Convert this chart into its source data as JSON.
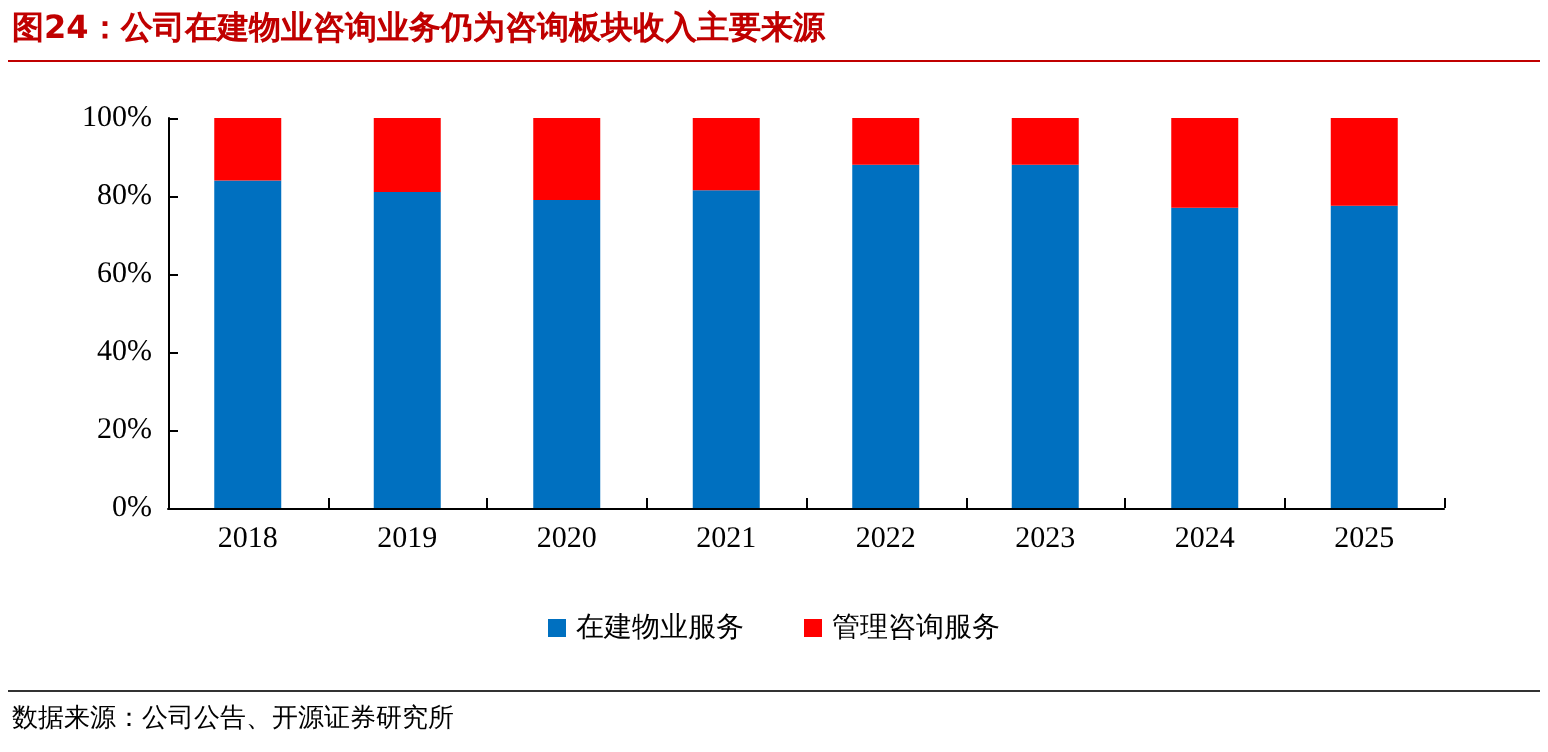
{
  "chart_data": {
    "type": "bar",
    "title": "图24：公司在建物业咨询业务仍为咨询板块收入主要来源",
    "stacked": true,
    "categories": [
      "2018",
      "2019",
      "2020",
      "2021",
      "2022",
      "2023",
      "2024",
      "2025"
    ],
    "series": [
      {
        "name": "在建物业服务",
        "color": "#0070c0",
        "values": [
          84,
          81,
          79,
          81.5,
          88,
          88,
          77,
          77.5
        ]
      },
      {
        "name": "管理咨询服务",
        "color": "#ff0000",
        "values": [
          16,
          19,
          21,
          18.5,
          12,
          12,
          23,
          22.5
        ]
      }
    ],
    "ylim": [
      0,
      100
    ],
    "yticks": [
      {
        "value": 0,
        "label": "0%"
      },
      {
        "value": 20,
        "label": "20%"
      },
      {
        "value": 40,
        "label": "40%"
      },
      {
        "value": 60,
        "label": "60%"
      },
      {
        "value": 80,
        "label": "80%"
      },
      {
        "value": 100,
        "label": "100%"
      }
    ],
    "grid": false,
    "legend": "bottom",
    "annotations": [
      "数据来源：公司公告、开源证券研究所"
    ]
  }
}
